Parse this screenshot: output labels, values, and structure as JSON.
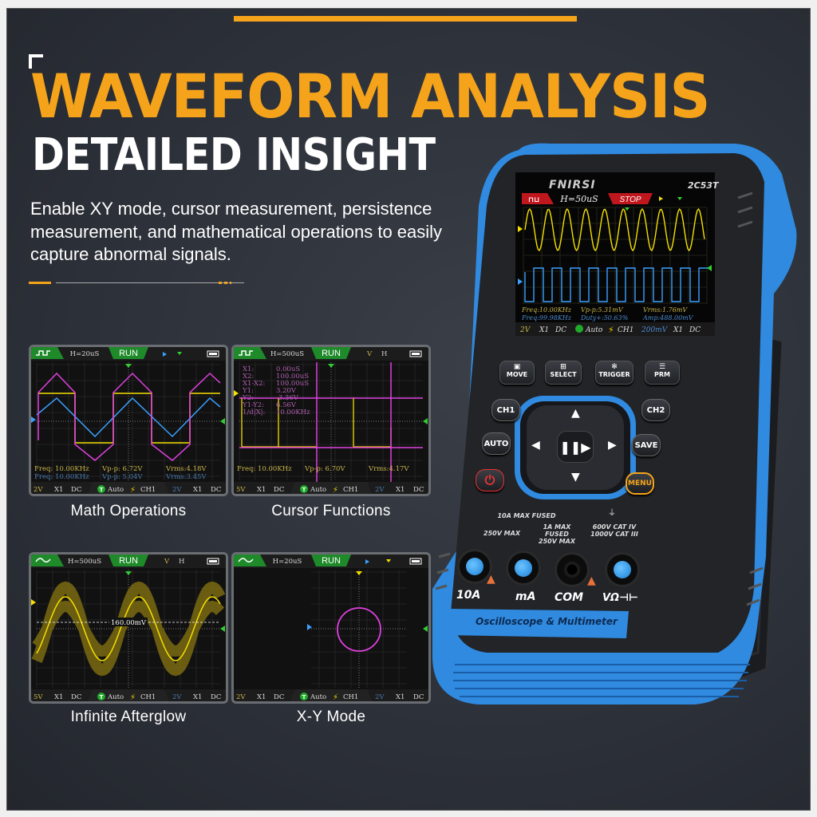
{
  "header": {
    "title": "WAVEFORM ANALYSIS",
    "subtitle": "DETAILED INSIGHT",
    "description": "Enable XY mode, cursor measurement, persistence measurement, and mathematical operations to easily capture abnormal signals."
  },
  "colors": {
    "accent": "#f5a31a",
    "device_blue": "#2f8ae0",
    "trace_yellow": "#f5e000",
    "trace_blue": "#3aa0ff",
    "trace_magenta": "#e040e0"
  },
  "panels": [
    {
      "label": "Math Operations",
      "screen": {
        "timebase": "H=20uS",
        "status": "RUN",
        "meas1": [
          "Freq: 10.00KHz",
          "Vp-p: 6.72V",
          "Vrms:4.18V"
        ],
        "meas2": [
          "Freq: 10.00KHz",
          "Vp-p: 5.04V",
          "Vrms:3.45V"
        ],
        "bottom": {
          "ch1_scale": "2V",
          "ch1_probe": "X1",
          "ch1_coupling": "DC",
          "trigger_mode": "Auto",
          "trigger_source": "CH1",
          "ch2_scale": "2V",
          "ch2_probe": "X1",
          "ch2_coupling": "DC"
        }
      }
    },
    {
      "label": "Cursor Functions",
      "screen": {
        "timebase": "H=500uS",
        "status": "RUN",
        "top_v": "V",
        "top_h": "H",
        "cursor_labels": [
          "X1:",
          "X2:",
          "X1-X2:",
          "Y1:",
          "Y2:",
          "Y1-Y2:",
          "1/d|X|:"
        ],
        "cursor_values": [
          "0.00uS",
          "100.00uS",
          "100.00uS",
          "3.20V",
          "-3.36V",
          "6.56V",
          "10.00KHz"
        ],
        "meas1": [
          "Freq: 10.00KHz",
          "Vp-p: 6.70V",
          "Vrms:4.17V"
        ],
        "bottom": {
          "ch1_scale": "5V",
          "ch1_probe": "X1",
          "ch1_coupling": "DC",
          "trigger_mode": "Auto",
          "trigger_source": "CH1",
          "ch2_scale": "2V",
          "ch2_probe": "X1",
          "ch2_coupling": "DC"
        }
      }
    },
    {
      "label": "Infinite Afterglow",
      "screen": {
        "timebase": "H=500uS",
        "status": "RUN",
        "top_v": "V",
        "top_h": "H",
        "level": "160.00mV",
        "bottom": {
          "ch1_scale": "5V",
          "ch1_probe": "X1",
          "ch1_coupling": "DC",
          "trigger_mode": "Auto",
          "trigger_source": "CH1",
          "ch2_scale": "2V",
          "ch2_probe": "X1",
          "ch2_coupling": "DC"
        }
      }
    },
    {
      "label": "X-Y Mode",
      "screen": {
        "timebase": "H=20uS",
        "status": "RUN",
        "bottom": {
          "ch1_scale": "2V",
          "ch1_probe": "X1",
          "ch1_coupling": "DC",
          "trigger_mode": "Auto",
          "trigger_source": "CH1",
          "ch2_scale": "2V",
          "ch2_probe": "X1",
          "ch2_coupling": "DC"
        }
      }
    }
  ],
  "device": {
    "brand": "FNIRSI",
    "model": "2C53T",
    "screen": {
      "timebase": "H=50uS",
      "status": "STOP",
      "meas1": [
        "Freq:10.00KHz",
        "Vp-p:5.31mV",
        "Vrms:1.76mV"
      ],
      "meas2": [
        "Freq:99.98KHz",
        "Duty+:50.63%",
        "Amp:488.00mV"
      ],
      "bottom": {
        "ch1_scale": "2V",
        "ch1_probe": "X1",
        "ch1_coupling": "DC",
        "trigger_mode": "Auto",
        "trigger_source": "CH1",
        "ch2_scale": "200mV",
        "ch2_probe": "X1",
        "ch2_coupling": "DC"
      }
    },
    "buttons": {
      "move": "MOVE",
      "select": "SELECT",
      "trigger": "TRIGGER",
      "prm": "PRM",
      "ch1": "CH1",
      "ch2": "CH2",
      "auto": "AUTO",
      "save": "SAVE",
      "menu": "MENU"
    },
    "jack_ratings": {
      "fused": "10A MAX FUSED",
      "v250": "250V MAX",
      "ma_rating": "1A MAX FUSED 250V MAX",
      "cat": "600V CAT IV 1000V CAT III"
    },
    "jacks": [
      "10A",
      "mA",
      "COM",
      "VΩ⊣⊢"
    ],
    "strip_label": "Oscilloscope & Multimeter"
  }
}
